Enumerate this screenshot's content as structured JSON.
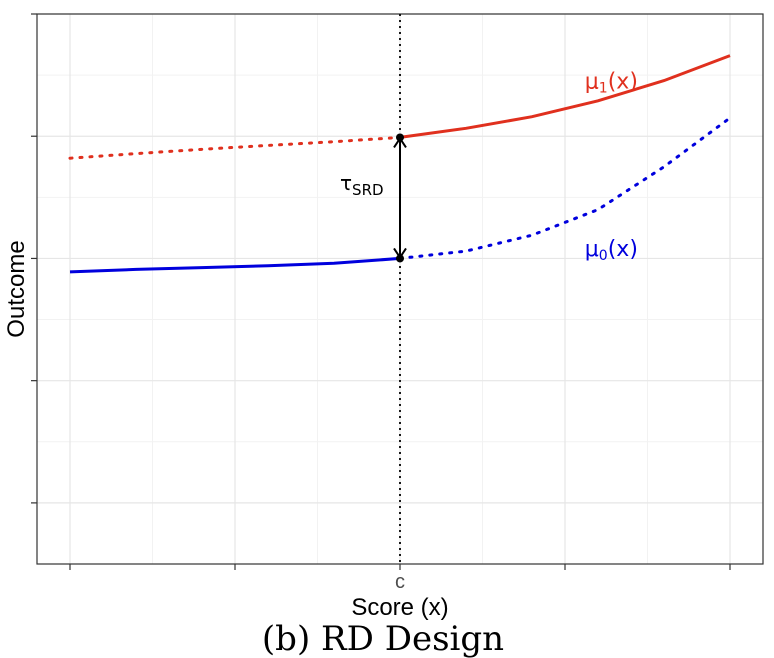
{
  "chart_data": {
    "type": "line",
    "xlabel": "Score (x)",
    "ylabel": "Outcome",
    "caption": "(b) RD Design",
    "x_ticks": [
      {
        "x": -1,
        "label": ""
      },
      {
        "x": -0.5,
        "label": ""
      },
      {
        "x": 0,
        "label": "c"
      },
      {
        "x": 0.5,
        "label": ""
      },
      {
        "x": 1,
        "label": ""
      }
    ],
    "y_ticks": [
      -2,
      -1,
      0,
      1,
      2
    ],
    "xlim": [
      -1.1,
      1.1
    ],
    "ylim": [
      -2.5,
      2
    ],
    "grid": true,
    "cutoff": 0,
    "series": [
      {
        "name": "μ1(x)",
        "label_main": "μ",
        "label_sub": "1",
        "label_tail": "(x)",
        "color": "#e0301e",
        "x": [
          -1,
          -0.8,
          -0.6,
          -0.4,
          -0.2,
          0,
          0.2,
          0.4,
          0.6,
          0.8,
          1
        ],
        "y": [
          0.82,
          0.858,
          0.893,
          0.925,
          0.955,
          0.99,
          1.065,
          1.16,
          1.29,
          1.455,
          1.66
        ],
        "observed_range": [
          0,
          1
        ]
      },
      {
        "name": "μ0(x)",
        "label_main": "μ",
        "label_sub": "0",
        "label_tail": "(x)",
        "color": "#0000dd",
        "x": [
          -1,
          -0.8,
          -0.6,
          -0.4,
          -0.2,
          0,
          0.2,
          0.4,
          0.6,
          0.8,
          1
        ],
        "y": [
          -0.11,
          -0.09,
          -0.075,
          -0.06,
          -0.04,
          0,
          0.06,
          0.19,
          0.4,
          0.75,
          1.15
        ],
        "observed_range": [
          -1,
          0
        ]
      }
    ],
    "annotation": {
      "label_main": "τ",
      "label_sub": "SRD",
      "x": 0,
      "y_from": 0,
      "y_to": 0.99
    }
  }
}
